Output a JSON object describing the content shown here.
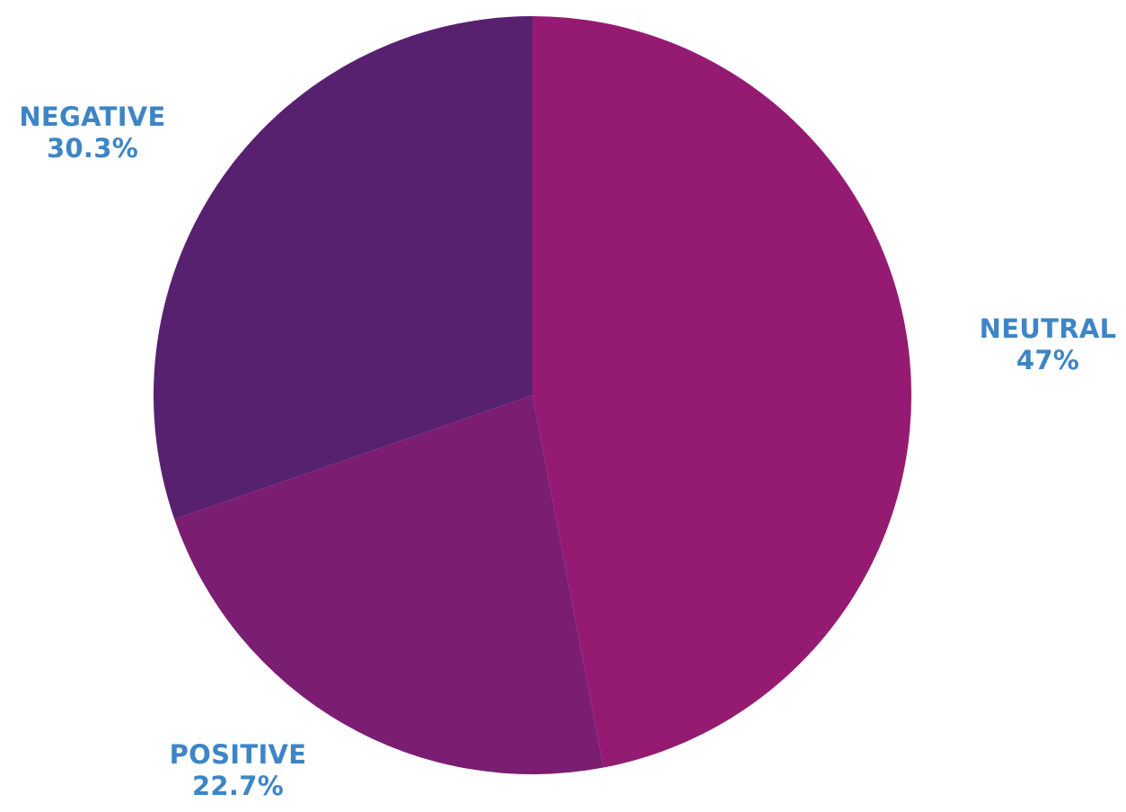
{
  "chart_data": {
    "type": "pie",
    "title": "",
    "slices": [
      {
        "label": "NEUTRAL",
        "value": 47,
        "value_text": "47%",
        "color": "#951b72"
      },
      {
        "label": "POSITIVE",
        "value": 22.7,
        "value_text": "22.7%",
        "color": "#7b1e72"
      },
      {
        "label": "NEGATIVE",
        "value": 30.3,
        "value_text": "30.3%",
        "color": "#582170"
      }
    ],
    "start_angle": "12 o'clock",
    "direction": "clockwise",
    "legend": "none",
    "label_color": "#3d85c6"
  }
}
